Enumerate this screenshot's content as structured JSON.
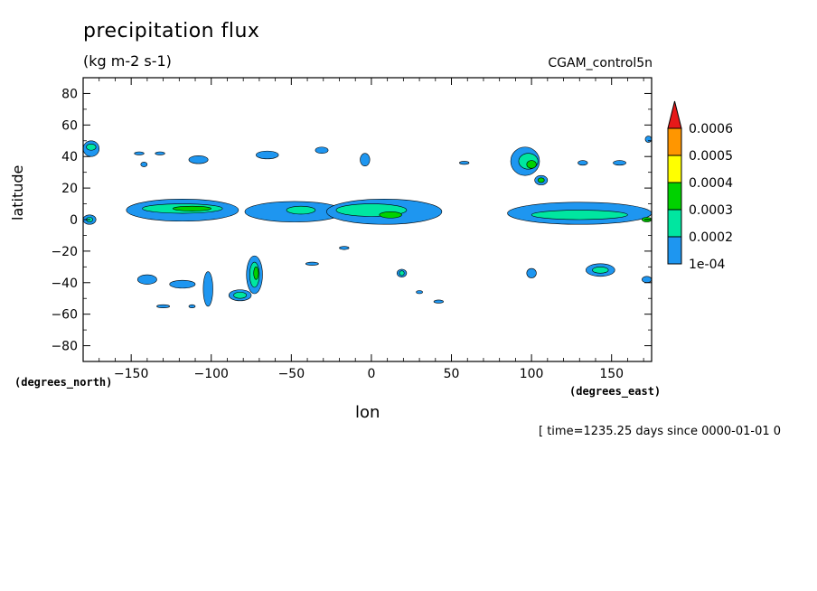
{
  "chart_data": {
    "type": "heatmap",
    "title": "precipitation flux",
    "subtitle": "(kg m-2 s-1)",
    "dataset_label": "CGAM_control5n",
    "xlabel": "lon",
    "ylabel": "latitude",
    "x_units_label": "(degrees_east)",
    "y_units_label": "(degrees_north)",
    "footer": "[ time=1235.25 days since 0000-01-01 0",
    "xlim": [
      -180,
      175
    ],
    "ylim": [
      -90,
      90
    ],
    "x_ticks": [
      -150,
      -100,
      -50,
      0,
      50,
      100,
      150
    ],
    "y_ticks": [
      80,
      60,
      40,
      20,
      0,
      -20,
      -40,
      -60,
      -80
    ],
    "colorbar": {
      "levels": [
        "1e-04",
        "0.0002",
        "0.0003",
        "0.0004",
        "0.0005",
        "0.0006"
      ],
      "colors": [
        "#1e96f0",
        "#00e6a0",
        "#00d200",
        "#ffff00",
        "#ff9600",
        "#e61919"
      ],
      "extend": "max"
    },
    "contour_regions": [
      {
        "level": 1,
        "lon": -175,
        "lat": 45,
        "w": 10,
        "h": 10
      },
      {
        "level": 2,
        "lon": -175,
        "lat": 46,
        "w": 6,
        "h": 4
      },
      {
        "level": 1,
        "lon": -176,
        "lat": 0,
        "w": 8,
        "h": 6
      },
      {
        "level": 2,
        "lon": -176,
        "lat": 0,
        "w": 4,
        "h": 3
      },
      {
        "level": 1,
        "lon": -145,
        "lat": 42,
        "w": 6,
        "h": 2
      },
      {
        "level": 1,
        "lon": -132,
        "lat": 42,
        "w": 6,
        "h": 2
      },
      {
        "level": 1,
        "lon": -142,
        "lat": 35,
        "w": 4,
        "h": 3
      },
      {
        "level": 1,
        "lon": -108,
        "lat": 38,
        "w": 12,
        "h": 5
      },
      {
        "level": 1,
        "lon": -65,
        "lat": 41,
        "w": 14,
        "h": 5
      },
      {
        "level": 1,
        "lon": -31,
        "lat": 44,
        "w": 8,
        "h": 4
      },
      {
        "level": 1,
        "lon": -4,
        "lat": 38,
        "w": 6,
        "h": 8
      },
      {
        "level": 1,
        "lon": 58,
        "lat": 36,
        "w": 6,
        "h": 2
      },
      {
        "level": 1,
        "lon": 96,
        "lat": 37,
        "w": 18,
        "h": 18
      },
      {
        "level": 2,
        "lon": 98,
        "lat": 37,
        "w": 12,
        "h": 10
      },
      {
        "level": 3,
        "lon": 100,
        "lat": 35,
        "w": 6,
        "h": 5
      },
      {
        "level": 1,
        "lon": 106,
        "lat": 25,
        "w": 8,
        "h": 6
      },
      {
        "level": 3,
        "lon": 106,
        "lat": 25,
        "w": 4,
        "h": 3
      },
      {
        "level": 1,
        "lon": 132,
        "lat": 36,
        "w": 6,
        "h": 3
      },
      {
        "level": 1,
        "lon": 155,
        "lat": 36,
        "w": 8,
        "h": 3
      },
      {
        "level": 1,
        "lon": 173,
        "lat": 51,
        "w": 4,
        "h": 4
      },
      {
        "level": 1,
        "lon": -118,
        "lat": 6,
        "w": 70,
        "h": 14
      },
      {
        "level": 2,
        "lon": -118,
        "lat": 7,
        "w": 50,
        "h": 6
      },
      {
        "level": 3,
        "lon": -112,
        "lat": 7,
        "w": 24,
        "h": 3
      },
      {
        "level": 1,
        "lon": -48,
        "lat": 5,
        "w": 62,
        "h": 13
      },
      {
        "level": 2,
        "lon": -44,
        "lat": 6,
        "w": 18,
        "h": 5
      },
      {
        "level": 1,
        "lon": 8,
        "lat": 5,
        "w": 72,
        "h": 16
      },
      {
        "level": 2,
        "lon": 0,
        "lat": 6,
        "w": 44,
        "h": 8
      },
      {
        "level": 3,
        "lon": 12,
        "lat": 3,
        "w": 14,
        "h": 4
      },
      {
        "level": 1,
        "lon": 130,
        "lat": 4,
        "w": 90,
        "h": 14
      },
      {
        "level": 2,
        "lon": 130,
        "lat": 3,
        "w": 60,
        "h": 6
      },
      {
        "level": 3,
        "lon": 172,
        "lat": 0,
        "w": 6,
        "h": 3
      },
      {
        "level": 1,
        "lon": -140,
        "lat": -38,
        "w": 12,
        "h": 6
      },
      {
        "level": 1,
        "lon": -118,
        "lat": -41,
        "w": 16,
        "h": 5
      },
      {
        "level": 1,
        "lon": -130,
        "lat": -55,
        "w": 8,
        "h": 2
      },
      {
        "level": 1,
        "lon": -112,
        "lat": -55,
        "w": 4,
        "h": 2
      },
      {
        "level": 1,
        "lon": -102,
        "lat": -44,
        "w": 6,
        "h": 22
      },
      {
        "level": 1,
        "lon": -73,
        "lat": -35,
        "w": 10,
        "h": 24
      },
      {
        "level": 2,
        "lon": -73,
        "lat": -35,
        "w": 6,
        "h": 16
      },
      {
        "level": 3,
        "lon": -72,
        "lat": -34,
        "w": 3,
        "h": 8
      },
      {
        "level": 1,
        "lon": -82,
        "lat": -48,
        "w": 14,
        "h": 7
      },
      {
        "level": 2,
        "lon": -82,
        "lat": -48,
        "w": 8,
        "h": 4
      },
      {
        "level": 1,
        "lon": -37,
        "lat": -28,
        "w": 8,
        "h": 2
      },
      {
        "level": 1,
        "lon": -17,
        "lat": -18,
        "w": 6,
        "h": 2
      },
      {
        "level": 1,
        "lon": 19,
        "lat": -34,
        "w": 6,
        "h": 5
      },
      {
        "level": 2,
        "lon": 19,
        "lat": -34,
        "w": 3,
        "h": 3
      },
      {
        "level": 1,
        "lon": 30,
        "lat": -46,
        "w": 4,
        "h": 2
      },
      {
        "level": 1,
        "lon": 42,
        "lat": -52,
        "w": 6,
        "h": 2
      },
      {
        "level": 1,
        "lon": 100,
        "lat": -34,
        "w": 6,
        "h": 6
      },
      {
        "level": 1,
        "lon": 143,
        "lat": -32,
        "w": 18,
        "h": 8
      },
      {
        "level": 2,
        "lon": 143,
        "lat": -32,
        "w": 10,
        "h": 4
      },
      {
        "level": 1,
        "lon": 172,
        "lat": -38,
        "w": 6,
        "h": 4
      }
    ]
  }
}
